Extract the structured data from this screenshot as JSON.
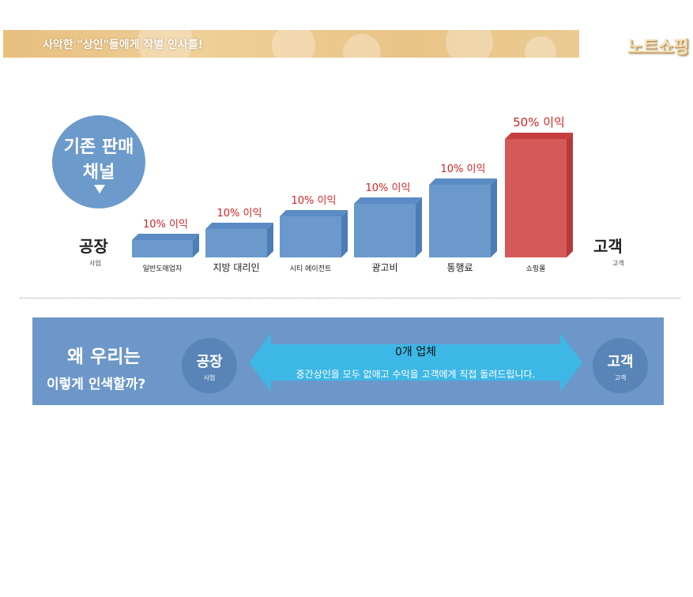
{
  "banner": {
    "text": "사악한 \"상인\"들에게 작별 인사를!",
    "brand": "노트쇼핑"
  },
  "chart_data": {
    "type": "bar",
    "title": "",
    "badge_line1": "기존 판매",
    "badge_line2": "채널",
    "start": {
      "label": "공장",
      "sub": "사업"
    },
    "end": {
      "label": "고객",
      "sub": "고객"
    },
    "categories": [
      "일반도매업자",
      "지방 대리인",
      "시티 에이전트",
      "광고비",
      "통행료",
      "쇼핑몰"
    ],
    "values": [
      10,
      10,
      10,
      10,
      10,
      50
    ],
    "data_labels": [
      "10% 이익",
      "10% 이익",
      "10% 이익",
      "10% 이익",
      "10% 이익",
      "50% 이익"
    ],
    "highlight_index": 5,
    "colors": {
      "bar": "#6b99cc",
      "bar_side": "#4c7db6",
      "bar_top": "#5b8bc4",
      "highlight": "#d45a5a",
      "highlight_side": "#b83a3a",
      "highlight_top": "#c53f3f",
      "label": "#d22323"
    },
    "xlabel": "",
    "ylabel": ""
  },
  "bottom": {
    "why_line1": "왜 우리는",
    "why_line2": "이렇게 인색할까?",
    "left_node": {
      "label": "공장",
      "sub": "사업"
    },
    "right_node": {
      "label": "고객",
      "sub": "고객"
    },
    "arrow_title": "0개 업체",
    "arrow_text": "중간상인을 모두 없애고 수익을 고객에게 직접 돌려드립니다.",
    "arrow_color": "#3db7e6"
  }
}
